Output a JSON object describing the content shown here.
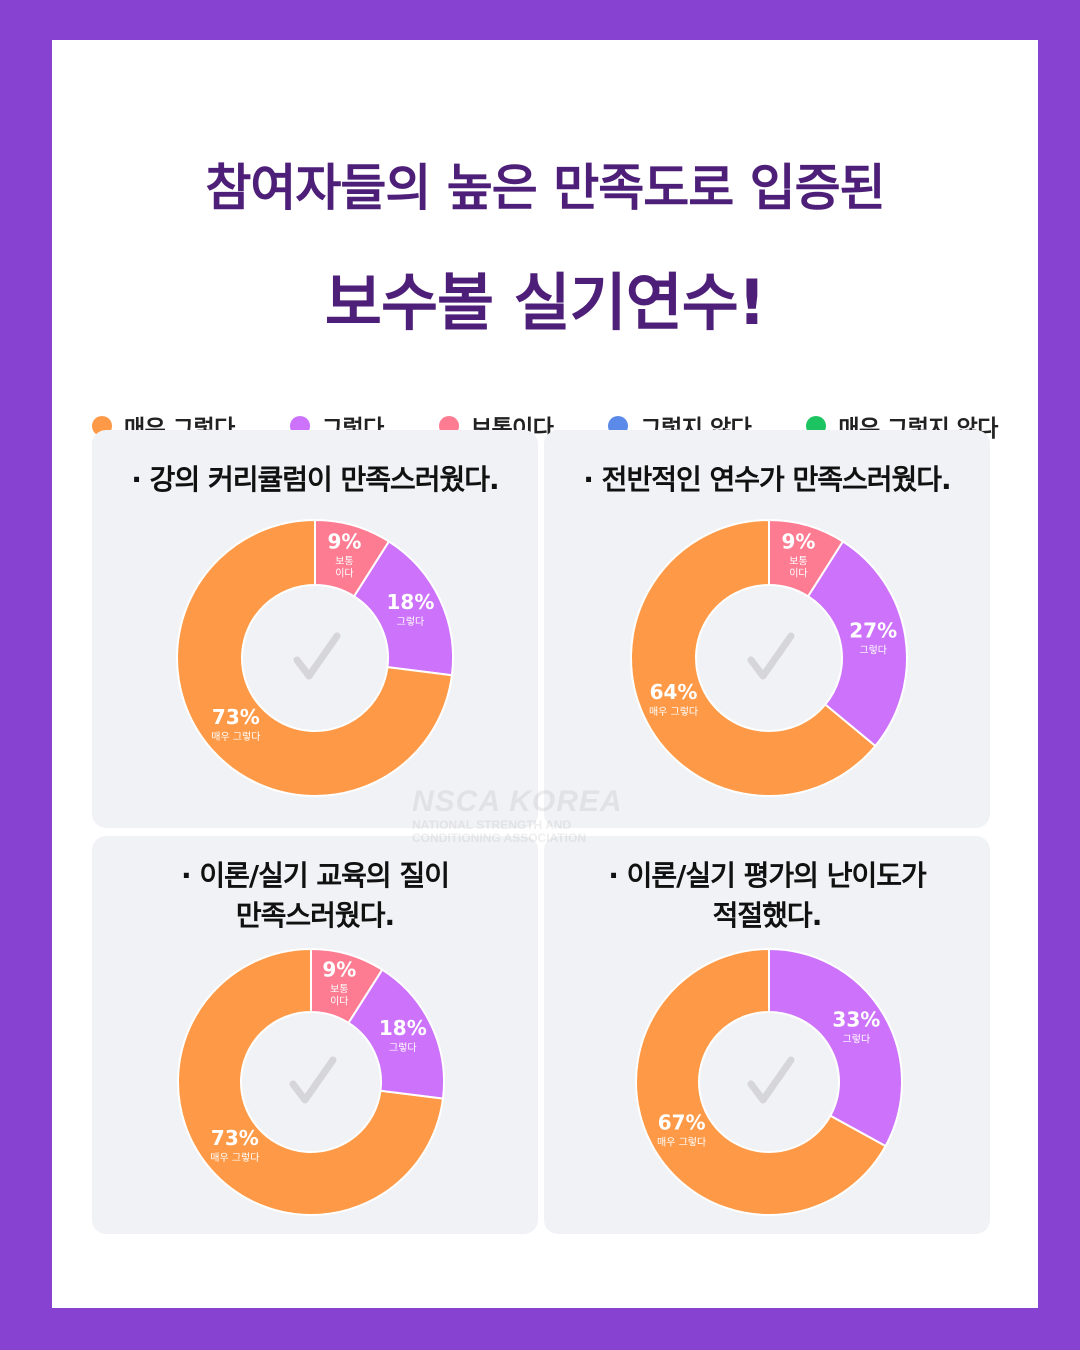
{
  "heading": {
    "line1": "참여자들의 높은 만족도로 입증된",
    "line2": "보수볼 실기연수!"
  },
  "legend": [
    {
      "label": "매우 그렇다",
      "color": "#fe9a47"
    },
    {
      "label": "그렇다",
      "color": "#cd73fb"
    },
    {
      "label": "보통이다",
      "color": "#fd7c92"
    },
    {
      "label": "그렇지 않다",
      "color": "#5b8ae9"
    },
    {
      "label": "매우 그렇지 않다",
      "color": "#1cc461"
    }
  ],
  "watermark": {
    "name": "NSCA KOREA",
    "line1": "NATIONAL STRENGTH AND",
    "line2": "CONDITIONING ASSOCIATION"
  },
  "chart_data": [
    {
      "type": "pie",
      "title": "· 강의 커리큘럼이 만족스러웠다.",
      "slices": [
        {
          "label": "보통 이다",
          "value": 9,
          "pct": "9%",
          "color": "#fd7c92"
        },
        {
          "label": "그렇다",
          "value": 18,
          "pct": "18%",
          "color": "#cd73fb"
        },
        {
          "label": "매우 그렇다",
          "value": 73,
          "pct": "73%",
          "color": "#fe9a47"
        }
      ]
    },
    {
      "type": "pie",
      "title": "· 전반적인 연수가 만족스러웠다.",
      "slices": [
        {
          "label": "보통 이다",
          "value": 9,
          "pct": "9%",
          "color": "#fd7c92"
        },
        {
          "label": "그렇다",
          "value": 27,
          "pct": "27%",
          "color": "#cd73fb"
        },
        {
          "label": "매우 그렇다",
          "value": 64,
          "pct": "64%",
          "color": "#fe9a47"
        }
      ]
    },
    {
      "type": "pie",
      "title": "· 이론/실기 교육의 질이\n만족스러웠다.",
      "slices": [
        {
          "label": "보통 이다",
          "value": 9,
          "pct": "9%",
          "color": "#fd7c92"
        },
        {
          "label": "그렇다",
          "value": 18,
          "pct": "18%",
          "color": "#cd73fb"
        },
        {
          "label": "매우 그렇다",
          "value": 73,
          "pct": "73%",
          "color": "#fe9a47"
        }
      ]
    },
    {
      "type": "pie",
      "title": "· 이론/실기 평가의 난이도가\n적절했다.",
      "slices": [
        {
          "label": "그렇다",
          "value": 33,
          "pct": "33%",
          "color": "#cd73fb"
        },
        {
          "label": "매우 그렇다",
          "value": 67,
          "pct": "67%",
          "color": "#fe9a47"
        }
      ]
    }
  ]
}
